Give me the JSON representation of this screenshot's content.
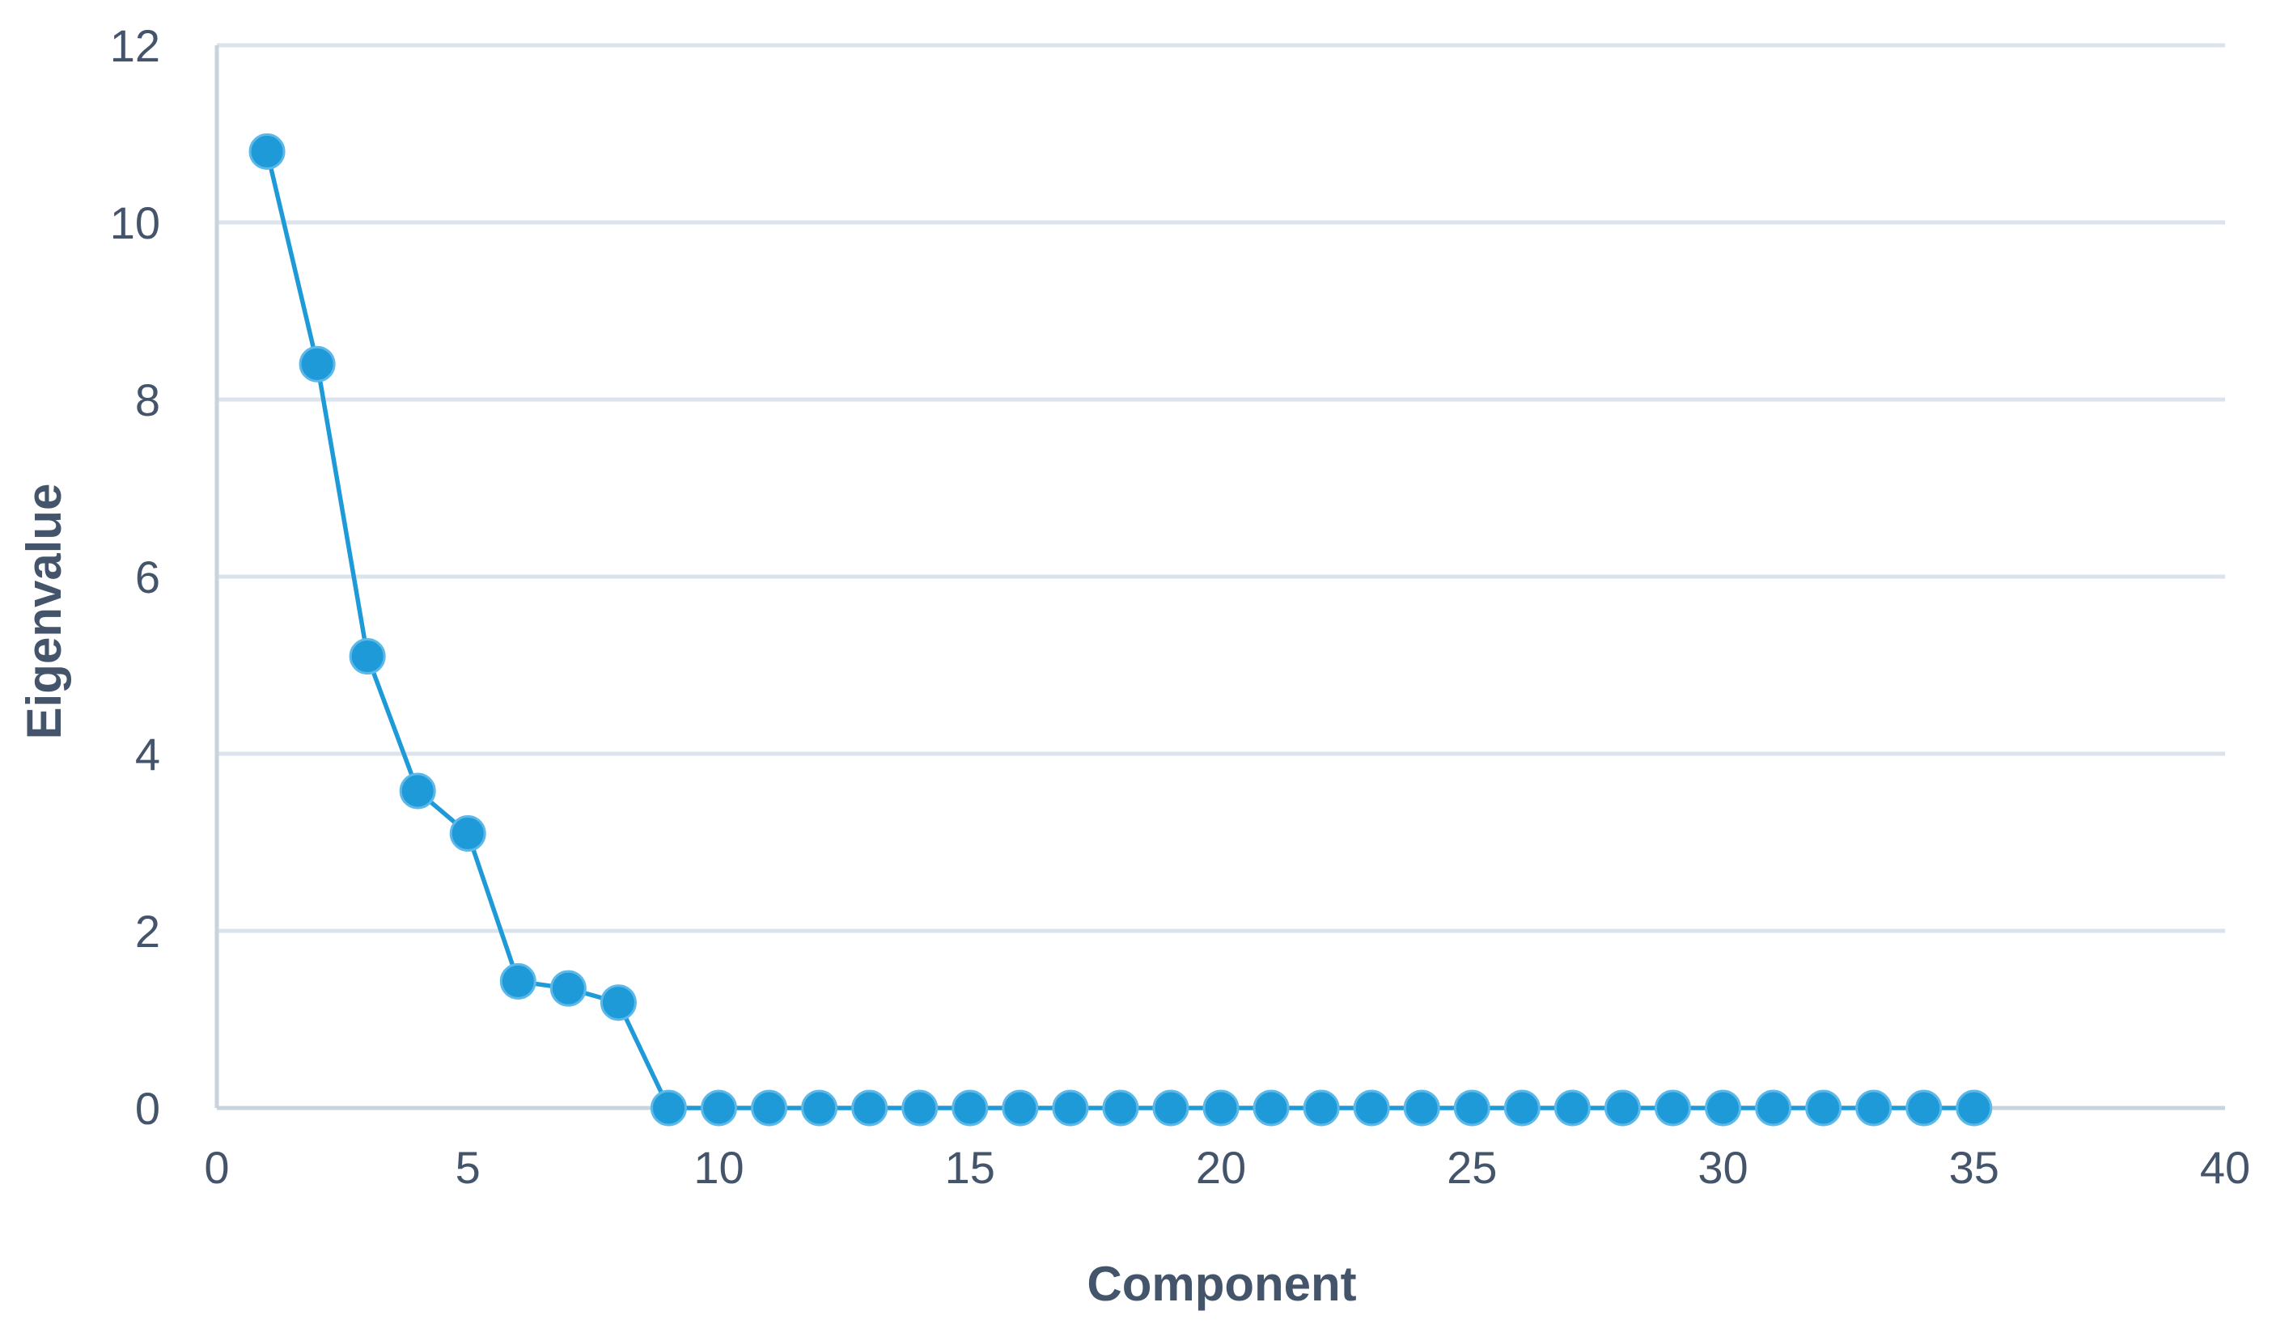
{
  "chart_data": {
    "type": "line",
    "title": "",
    "xlabel": "Component",
    "ylabel": "Eigenvalue",
    "xlim": [
      0,
      40
    ],
    "ylim": [
      0,
      12
    ],
    "x_ticks": [
      0,
      5,
      10,
      15,
      20,
      25,
      30,
      35,
      40
    ],
    "y_ticks": [
      0,
      2,
      4,
      6,
      8,
      10,
      12
    ],
    "grid": "horizontal",
    "legend": "none",
    "series": [
      {
        "name": "",
        "color": "#1e9ad9",
        "marker": "circle",
        "x": [
          1,
          2,
          3,
          4,
          5,
          6,
          7,
          8,
          9,
          10,
          11,
          12,
          13,
          14,
          15,
          16,
          17,
          18,
          19,
          20,
          21,
          22,
          23,
          24,
          25,
          26,
          27,
          28,
          29,
          30,
          31,
          32,
          33,
          34,
          35
        ],
        "values": [
          10.8,
          8.4,
          5.1,
          3.58,
          3.1,
          1.43,
          1.35,
          1.19,
          0,
          0,
          0,
          0,
          0,
          0,
          0,
          0,
          0,
          0,
          0,
          0,
          0,
          0,
          0,
          0,
          0,
          0,
          0,
          0,
          0,
          0,
          0,
          0,
          0,
          0,
          0
        ]
      }
    ],
    "colors": {
      "series": "#1e9ad9",
      "grid": "#dbe3ec",
      "axis": "#c9d3de",
      "text": "#44546a"
    }
  }
}
